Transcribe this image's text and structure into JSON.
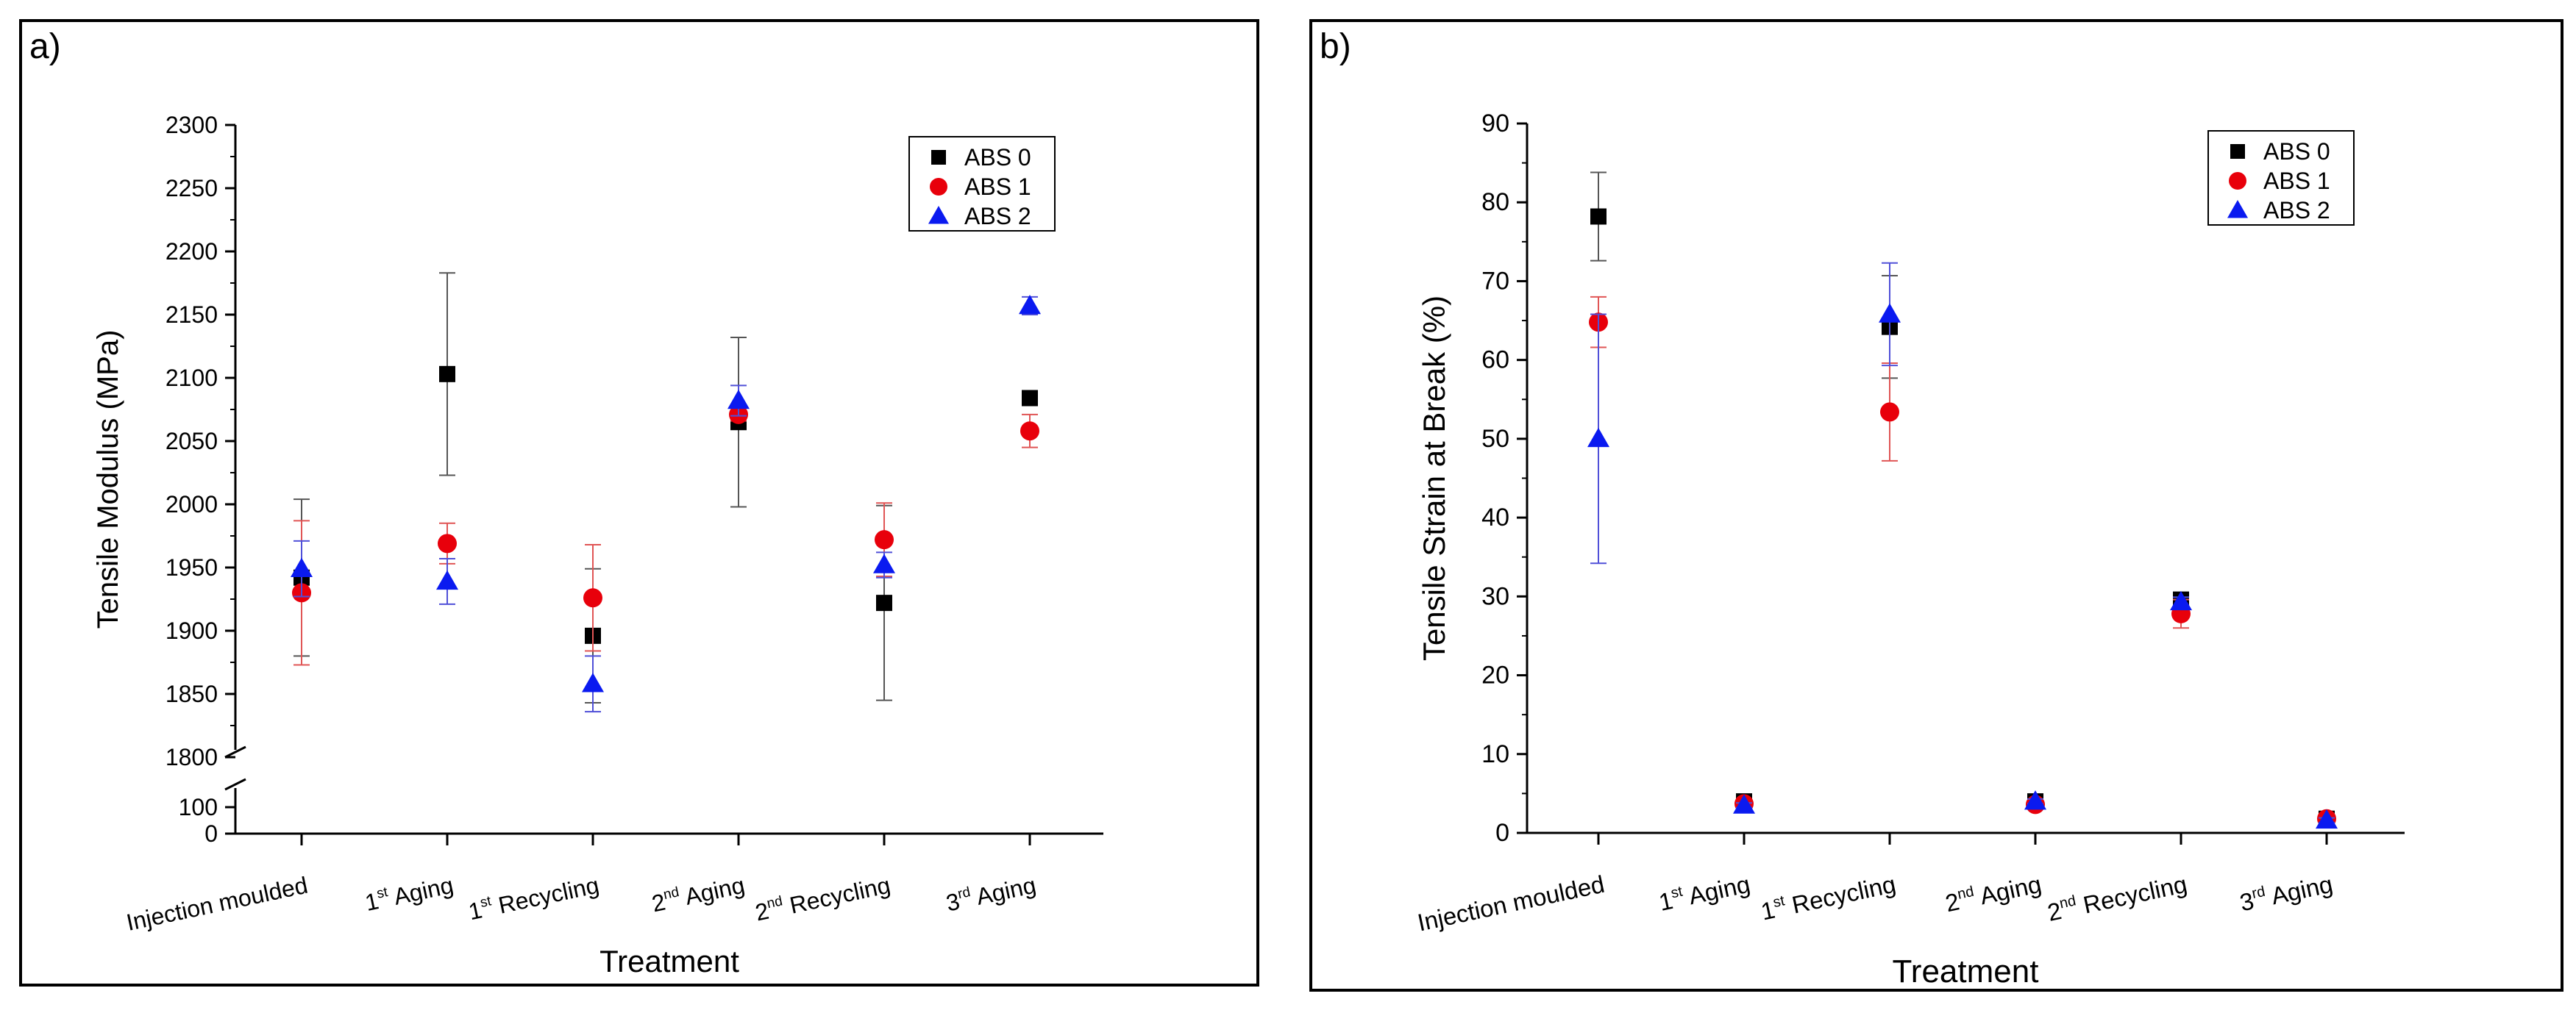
{
  "colors": {
    "ABS 0": "#000000",
    "ABS 1": "#e8000b",
    "ABS 2": "#0a1af0",
    "err_ABS 0": "#555555",
    "err_ABS 1": "#e05555",
    "err_ABS 2": "#5050d8"
  },
  "chart_data": [
    {
      "panel_label": "a)",
      "type": "scatter",
      "xlabel": "Treatment",
      "ylabel": "Tensile Modulus (MPa)",
      "categories": [
        "Injection moulded",
        "1st Aging",
        "1st Recycling",
        "2nd Aging",
        "2nd Recycling",
        "3rd Aging"
      ],
      "category_labels": [
        {
          "pre": "Injection moulded",
          "sup": "",
          "post": ""
        },
        {
          "pre": "1",
          "sup": "st",
          "post": " Aging"
        },
        {
          "pre": "1",
          "sup": "st",
          "post": " Recycling"
        },
        {
          "pre": "2",
          "sup": "nd",
          "post": " Aging"
        },
        {
          "pre": "2",
          "sup": "nd",
          "post": " Recycling"
        },
        {
          "pre": "3",
          "sup": "rd",
          "post": " Aging"
        }
      ],
      "y_axis_break": {
        "lower_range": [
          0,
          150
        ],
        "lower_ticks": [
          0,
          100
        ],
        "upper_range": [
          1800,
          2300
        ],
        "upper_ticks": [
          1800,
          1850,
          1900,
          1950,
          2000,
          2050,
          2100,
          2150,
          2200,
          2250,
          2300
        ]
      },
      "legend": {
        "position": "top-right",
        "entries": [
          "ABS 0",
          "ABS 1",
          "ABS 2"
        ]
      },
      "series": [
        {
          "name": "ABS 0",
          "marker": "square",
          "values": [
            1942,
            2103,
            1896,
            2065,
            1922,
            2084
          ],
          "errors": [
            62,
            80,
            53,
            67,
            77,
            0
          ]
        },
        {
          "name": "ABS 1",
          "marker": "circle",
          "values": [
            1930,
            1969,
            1926,
            2071,
            1972,
            2058
          ],
          "errors": [
            57,
            16,
            42,
            5,
            29,
            13
          ]
        },
        {
          "name": "ABS 2",
          "marker": "triangle",
          "values": [
            1949,
            1939,
            1858,
            2082,
            1952,
            2157
          ],
          "errors": [
            22,
            18,
            22,
            12,
            10,
            7
          ]
        }
      ]
    },
    {
      "panel_label": "b)",
      "type": "scatter",
      "xlabel": "Treatment",
      "ylabel": "Tensile Strain at Break (%)",
      "categories": [
        "Injection moulded",
        "1st Aging",
        "1st Recycling",
        "2nd Aging",
        "2nd Recycling",
        "3rd Aging"
      ],
      "category_labels": [
        {
          "pre": "Injection moulded",
          "sup": "",
          "post": ""
        },
        {
          "pre": "1",
          "sup": "st",
          "post": " Aging"
        },
        {
          "pre": "1",
          "sup": "st",
          "post": " Recycling"
        },
        {
          "pre": "2",
          "sup": "nd",
          "post": " Aging"
        },
        {
          "pre": "2",
          "sup": "nd",
          "post": " Recycling"
        },
        {
          "pre": "3",
          "sup": "rd",
          "post": " Aging"
        }
      ],
      "ylim": [
        0,
        90
      ],
      "yticks": [
        0,
        10,
        20,
        30,
        40,
        50,
        60,
        70,
        80,
        90
      ],
      "legend": {
        "position": "top-right",
        "entries": [
          "ABS 0",
          "ABS 1",
          "ABS 2"
        ]
      },
      "series": [
        {
          "name": "ABS 0",
          "marker": "square",
          "values": [
            78.2,
            4.0,
            64.2,
            4.0,
            29.6,
            1.8
          ],
          "errors": [
            5.6,
            0.3,
            6.5,
            0.3,
            0.6,
            0.3
          ]
        },
        {
          "name": "ABS 1",
          "marker": "circle",
          "values": [
            64.8,
            3.7,
            53.4,
            3.6,
            27.8,
            1.8
          ],
          "errors": [
            3.2,
            0.3,
            6.2,
            0.3,
            1.8,
            0.3
          ]
        },
        {
          "name": "ABS 2",
          "marker": "triangle",
          "values": [
            50.0,
            3.5,
            65.8,
            4.0,
            29.3,
            1.6
          ],
          "errors": [
            15.8,
            0.3,
            6.5,
            0.3,
            0.6,
            0.3
          ]
        }
      ]
    }
  ]
}
